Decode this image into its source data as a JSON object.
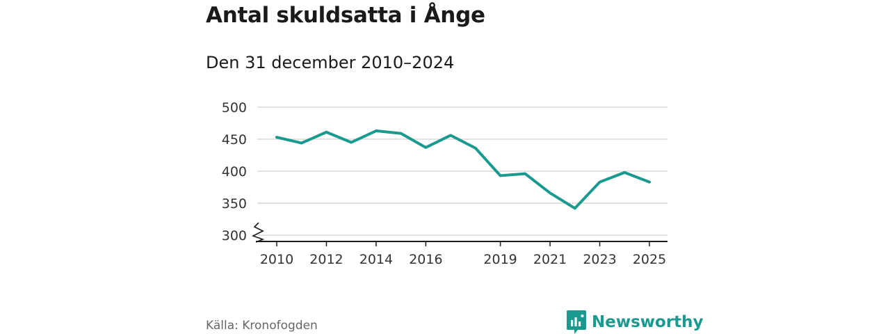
{
  "title": "Antal skuldsatta i Ånge",
  "subtitle": "Den 31 december 2010–2024",
  "source": "Källa: Kronofogden",
  "brand": {
    "name": "Newsworthy",
    "icon": "newsworthy-logo-icon",
    "color": "#1a9a8e"
  },
  "chart_data": {
    "type": "line",
    "x": [
      2010,
      2011,
      2012,
      2013,
      2014,
      2015,
      2016,
      2017,
      2018,
      2019,
      2020,
      2021,
      2022,
      2023,
      2024,
      2025
    ],
    "series": [
      {
        "values": [
          453,
          444,
          461,
          445,
          463,
          459,
          437,
          456,
          436,
          393,
          396,
          366,
          342,
          383,
          398,
          383
        ],
        "color": "#1a9a8e"
      }
    ],
    "xticks": [
      2010,
      2012,
      2014,
      2016,
      2019,
      2021,
      2023,
      2025
    ],
    "xtick_labels": [
      "2010",
      "2012",
      "2014",
      "2016",
      "2019",
      "2021",
      "2023",
      "2025"
    ],
    "yticks": [
      300,
      350,
      400,
      450,
      500
    ],
    "ytick_labels": [
      "300",
      "350",
      "400",
      "450",
      "500"
    ],
    "ylim": [
      300,
      500
    ],
    "xlim": [
      2010,
      2025
    ],
    "y_axis_break": true,
    "grid": true,
    "xlabel": "",
    "ylabel": ""
  }
}
